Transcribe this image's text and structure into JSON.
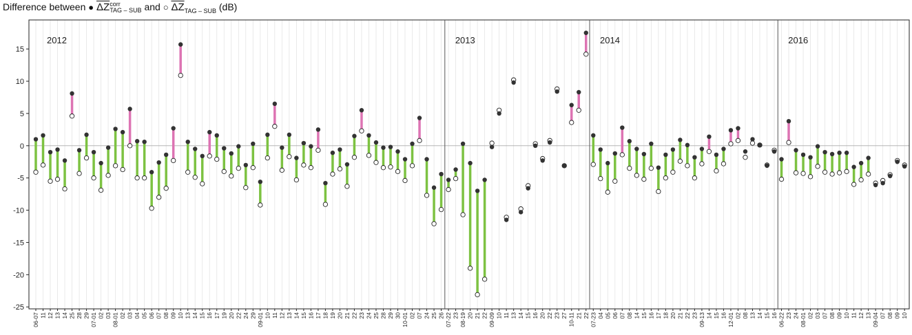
{
  "chart_data": {
    "type": "dumbbell",
    "title": "Difference between",
    "title_join": "and",
    "title_unit": "(dB)",
    "series": [
      {
        "name": "ΔZ",
        "superscript": "corr",
        "subscript": "TAG – SUB",
        "marker": "●",
        "color": "#333333",
        "values": [
          1.0,
          1.6,
          -1.0,
          -0.6,
          -2.3,
          8.1,
          -0.7,
          1.7,
          -1.0,
          -2.7,
          -0.3,
          2.6,
          2.1,
          5.7,
          0.7,
          0.6,
          -4.1,
          -2.6,
          -1.4,
          2.7,
          15.7,
          0.6,
          -0.5,
          -1.6,
          2.1,
          1.6,
          -0.4,
          -1.2,
          -0.1,
          -3.0,
          0.3,
          -5.6,
          1.7,
          6.5,
          -0.3,
          1.7,
          -1.9,
          0.4,
          -0.1,
          2.5,
          -5.8,
          -1.1,
          -0.6,
          -2.9,
          1.5,
          5.5,
          1.6,
          0.5,
          -0.3,
          -0.2,
          -0.9,
          -2.1,
          0.3,
          4.3,
          -2.1,
          -6.5,
          -4.4,
          -5.3,
          -3.7,
          0.3,
          -2.7,
          -7.0,
          -5.3,
          -0.2,
          5.0,
          -11.5,
          9.8,
          -10.3,
          -6.6,
          0.0,
          -2.3,
          0.5,
          8.4,
          -3.1,
          6.3,
          8.3,
          17.5,
          1.6,
          -0.6,
          -2.7,
          -1.2,
          2.8,
          0.7,
          -0.5,
          -1.3,
          0.3,
          -3.4,
          -1.4,
          -0.6,
          0.9,
          0.1,
          -1.8,
          -0.5,
          1.4,
          -1.4,
          -0.5,
          2.4,
          2.7,
          -0.9,
          1.0,
          0.1,
          -3.1,
          -0.9,
          -2.1,
          3.8,
          -0.7,
          -1.4,
          -1.8,
          -0.1,
          -1.0,
          -1.3,
          -1.1,
          -1.1,
          -3.3,
          -2.7,
          -1.9,
          -6.1,
          -5.8,
          -4.7,
          -2.5,
          -3.2
        ]
      },
      {
        "name": "ΔZ",
        "subscript": "TAG – SUB",
        "marker": "○",
        "color": "#ffffff",
        "values": [
          -4.1,
          -3.0,
          -5.5,
          -5.2,
          -6.7,
          4.6,
          -4.3,
          -1.9,
          -5.0,
          -6.9,
          -4.6,
          -3.1,
          -3.7,
          0.0,
          -5.0,
          -5.0,
          -9.7,
          -8.0,
          -6.6,
          -2.3,
          10.9,
          -4.1,
          -4.9,
          -5.9,
          -1.6,
          -2.1,
          -4.0,
          -4.7,
          -3.5,
          -6.5,
          -3.4,
          -9.2,
          -1.9,
          3.0,
          -3.8,
          -1.7,
          -5.3,
          -3.0,
          -3.4,
          -0.7,
          -9.1,
          -4.4,
          -3.6,
          -6.3,
          -1.8,
          2.3,
          -1.5,
          -2.6,
          -3.4,
          -3.3,
          -4.0,
          -5.4,
          -3.1,
          0.8,
          -7.7,
          -12.1,
          -9.9,
          -6.8,
          -5.1,
          -10.7,
          -19.0,
          -23.1,
          -20.7,
          0.4,
          5.5,
          -11.1,
          10.2,
          -9.8,
          -6.2,
          0.3,
          -2.0,
          0.8,
          8.8,
          -3.1,
          3.6,
          5.5,
          14.2,
          -2.9,
          -5.1,
          -7.2,
          -5.5,
          -1.4,
          -3.5,
          -4.6,
          -5.2,
          -3.5,
          -7.1,
          -5.0,
          -4.1,
          -2.4,
          -3.1,
          -5.0,
          -2.8,
          -0.9,
          -3.9,
          -2.8,
          0.3,
          0.8,
          -1.8,
          0.4,
          0.1,
          -3.0,
          -0.7,
          -5.2,
          0.5,
          -4.2,
          -4.3,
          -4.8,
          -3.2,
          -4.1,
          -4.4,
          -4.2,
          -4.0,
          -6.0,
          -5.3,
          -4.4,
          -5.8,
          -5.4,
          -4.5,
          -2.3,
          -3.0
        ]
      }
    ],
    "stick_colors": [
      "#7dc242",
      "#7dc242",
      "#7dc242",
      "#7dc242",
      "#7dc242",
      "#dd74b3",
      "#7dc242",
      "#7dc242",
      "#7dc242",
      "#7dc242",
      "#7dc242",
      "#7dc242",
      "#7dc242",
      "#dd74b3",
      "#7dc242",
      "#7dc242",
      "#7dc242",
      "#7dc242",
      "#7dc242",
      "#dd74b3",
      "#dd74b3",
      "#7dc242",
      "#7dc242",
      "#7dc242",
      "#dd74b3",
      "#7dc242",
      "#7dc242",
      "#7dc242",
      "#7dc242",
      "#7dc242",
      "#7dc242",
      "#7dc242",
      "#7dc242",
      "#dd74b3",
      "#7dc242",
      "#7dc242",
      "#7dc242",
      "#7dc242",
      "#7dc242",
      "#dd74b3",
      "#7dc242",
      "#7dc242",
      "#7dc242",
      "#7dc242",
      "#7dc242",
      "#dd74b3",
      "#7dc242",
      "#7dc242",
      "#7dc242",
      "#7dc242",
      "#7dc242",
      "#7dc242",
      "#7dc242",
      "#dd74b3",
      "#7dc242",
      "#7dc242",
      "#7dc242",
      "#7dc242",
      "#7dc242",
      "#7dc242",
      "#7dc242",
      "#7dc242",
      "#7dc242",
      null,
      null,
      null,
      null,
      null,
      null,
      null,
      null,
      null,
      null,
      null,
      "#dd74b3",
      "#dd74b3",
      "#dd74b3",
      "#7dc242",
      "#7dc242",
      "#7dc242",
      "#7dc242",
      "#dd74b3",
      "#7dc242",
      "#7dc242",
      "#7dc242",
      "#7dc242",
      "#7dc242",
      "#7dc242",
      "#7dc242",
      "#7dc242",
      "#7dc242",
      "#7dc242",
      "#7dc242",
      "#dd74b3",
      "#7dc242",
      "#7dc242",
      "#dd74b3",
      "#dd74b3",
      null,
      null,
      null,
      null,
      null,
      "#7dc242",
      "#dd74b3",
      "#7dc242",
      "#7dc242",
      "#7dc242",
      "#7dc242",
      "#7dc242",
      "#7dc242",
      "#7dc242",
      "#7dc242",
      "#7dc242",
      "#7dc242",
      "#7dc242",
      null,
      null,
      null,
      null,
      null
    ],
    "years": [
      {
        "label": "2012",
        "categories": [
          "06-07",
          "11",
          "12",
          "13",
          "14",
          "25",
          "28",
          "29",
          "07-01",
          "02",
          "03",
          "08-01",
          "02",
          "03",
          "04",
          "05",
          "06",
          "07",
          "08",
          "09",
          "10",
          "13",
          "14",
          "15",
          "16",
          "17",
          "19",
          "20",
          "22",
          "24",
          "29",
          "09-01",
          "10",
          "11",
          "12",
          "13",
          "14",
          "15",
          "16",
          "17",
          "18",
          "19",
          "20",
          "21",
          "22",
          "23",
          "24",
          "25",
          "28",
          "29",
          "30",
          "10-01",
          "02",
          "07",
          "24",
          "25",
          "26"
        ]
      },
      {
        "label": "2013",
        "categories": [
          "07-22",
          "23",
          "08-19",
          "20",
          "21",
          "22",
          "09-09",
          "10",
          "11",
          "13",
          "14",
          "15",
          "16",
          "20",
          "22",
          "23",
          "27",
          "10-11",
          "21",
          "22"
        ]
      },
      {
        "label": "2014",
        "categories": [
          "07-23",
          "04",
          "05",
          "06",
          "07",
          "08",
          "14",
          "15",
          "16",
          "17",
          "18",
          "20",
          "21",
          "22",
          "23",
          "09-13",
          "14",
          "15",
          "16",
          "12-01",
          "02",
          "08",
          "13",
          "14",
          "15",
          "16"
        ]
      },
      {
        "label": "2016",
        "categories": [
          "06-22",
          "23",
          "24",
          "08-01",
          "02",
          "03",
          "07",
          "08",
          "09",
          "10",
          "11",
          "12",
          "13",
          "09-04",
          "07",
          "08",
          "09",
          "10"
        ]
      }
    ],
    "ylim": [
      -25.3,
      19.5
    ],
    "yticks": [
      15,
      10,
      5,
      0,
      -5,
      -10,
      -15,
      -20,
      -25
    ],
    "zero_line": true,
    "grid": true
  }
}
